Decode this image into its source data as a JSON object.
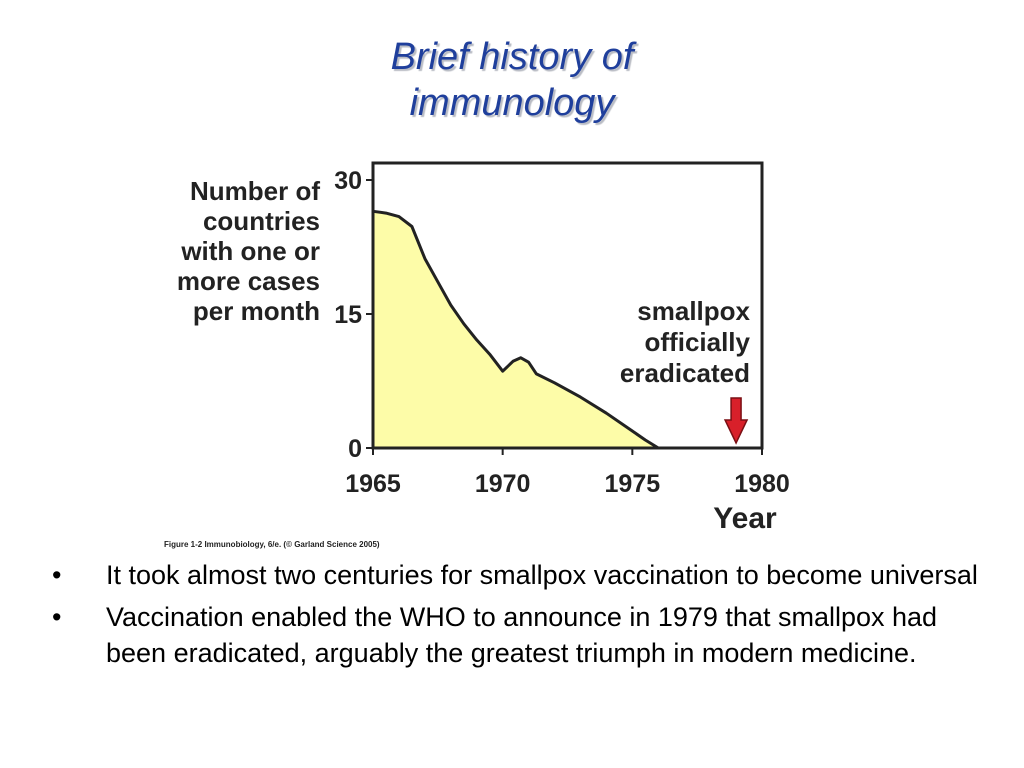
{
  "slide": {
    "title_line1": "Brief history of",
    "title_line2": "immunology",
    "figure_caption": "Figure 1-2  Immunobiology, 6/e. (© Garland Science 2005)",
    "bullets": [
      "It took almost two centuries for smallpox vaccination to become universal",
      "Vaccination enabled the WHO to announce in 1979 that smallpox had been eradicated, arguably the greatest triumph in modern medicine."
    ],
    "bullet_glyph": "•"
  },
  "chart_data": {
    "type": "area",
    "ylabel_lines": [
      "Number of",
      "countries",
      "with one or",
      "more cases",
      "per month"
    ],
    "xlabel": "Year",
    "xlim": [
      1965,
      1980
    ],
    "ylim": [
      0,
      30
    ],
    "xticks": [
      1965,
      1970,
      1975,
      1980
    ],
    "yticks": [
      0,
      15,
      30
    ],
    "series": [
      {
        "x": [
          1965,
          1965.5,
          1966,
          1966.5,
          1967,
          1967.5,
          1968,
          1968.5,
          1969,
          1969.5,
          1970,
          1970.4,
          1970.7,
          1971,
          1971.3,
          1972,
          1973,
          1974,
          1975,
          1975.5,
          1976
        ],
        "y": [
          26.5,
          26.3,
          25.9,
          24.8,
          21.2,
          18.6,
          16.0,
          13.9,
          12.1,
          10.5,
          8.6,
          9.7,
          10.1,
          9.6,
          8.3,
          7.3,
          5.7,
          3.9,
          1.9,
          0.9,
          0
        ]
      }
    ],
    "annotation": {
      "lines": [
        "smallpox",
        "officially",
        "eradicated"
      ],
      "x": 1979
    },
    "colors": {
      "fill": "#fdfca8",
      "line": "#222222",
      "arrow": "#d8202a",
      "title": "#1f3f9c"
    }
  }
}
